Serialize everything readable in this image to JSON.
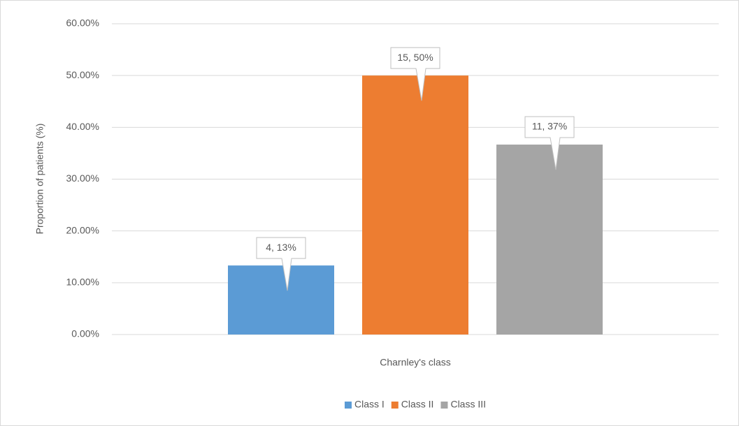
{
  "chart_data": {
    "type": "bar",
    "y_label": "Proportion of patients (%)",
    "x_label": "Charnley's class",
    "categories": [
      null
    ],
    "series": [
      {
        "name": "Class I",
        "color": "#5b9bd5",
        "values": [
          13.33
        ],
        "value_labels": [
          "4, 13%"
        ]
      },
      {
        "name": "Class II",
        "color": "#ed7d31",
        "values": [
          50
        ],
        "value_labels": [
          "15, 50%"
        ]
      },
      {
        "name": "Class III",
        "color": "#a5a5a5",
        "values": [
          36.67
        ],
        "value_labels": [
          "11, 37%"
        ]
      }
    ],
    "ylim": [
      0,
      60
    ],
    "yticks": [
      {
        "value": 0,
        "label": "0.00%"
      },
      {
        "value": 10,
        "label": "10.00%"
      },
      {
        "value": 20,
        "label": "20.00%"
      },
      {
        "value": 30,
        "label": "30.00%"
      },
      {
        "value": 40,
        "label": "40.00%"
      },
      {
        "value": 50,
        "label": "50.00%"
      },
      {
        "value": 60,
        "label": "60.00%"
      }
    ],
    "grid": true,
    "legend": "bottom"
  }
}
